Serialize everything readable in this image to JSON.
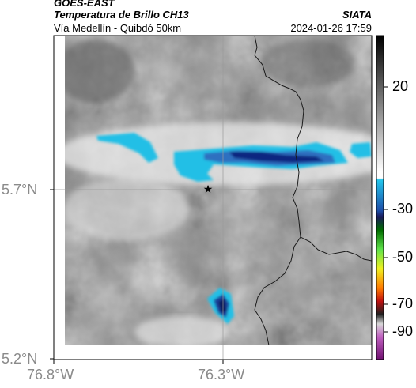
{
  "header": {
    "satellite": "GOES-EAST",
    "product": "Temperatura de Brillo CH13",
    "organization": "SIATA",
    "region": "Vía Medellín - Quibdó 50km",
    "datetime": "2024-01-26 17:59"
  },
  "axes": {
    "lat_labels": [
      "5.7°N",
      "5.2°N"
    ],
    "lon_labels": [
      "76.8°W",
      "76.3°W"
    ]
  },
  "colorbar": {
    "tick_labels": [
      "20",
      "-30",
      "-50",
      "-70",
      "-90"
    ]
  },
  "map": {
    "marker_icon": "star-icon",
    "borders": "political boundaries (dark lines)",
    "gridlines": true
  },
  "colors": {
    "cloud_cold": "#1ec0e8",
    "cloud_colder": "#1f4fb0",
    "cloud_coldest": "#0a1f7a",
    "background_gray": "#8a8a8a"
  }
}
